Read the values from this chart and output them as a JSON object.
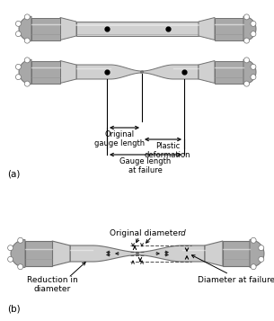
{
  "bg_color": "#ffffff",
  "c_light": "#d0d0d0",
  "c_mid": "#a8a8a8",
  "c_dark": "#707070",
  "c_white": "#f5f5f5",
  "c_shadow": "#909090",
  "title_a": "(a)",
  "title_b": "(b)",
  "label_original_gauge": "Original\ngauge length",
  "label_plastic": "Plastic\ndeformation",
  "label_gauge_failure": "Gauge length\nat failure",
  "label_orig_diam": "Original diameter ",
  "label_orig_diam_d": "d",
  "label_reduction": "Reduction in\ndiameter",
  "label_diam_failure": "Diameter at failure",
  "figsize": [
    3.05,
    3.57
  ],
  "dpi": 100
}
